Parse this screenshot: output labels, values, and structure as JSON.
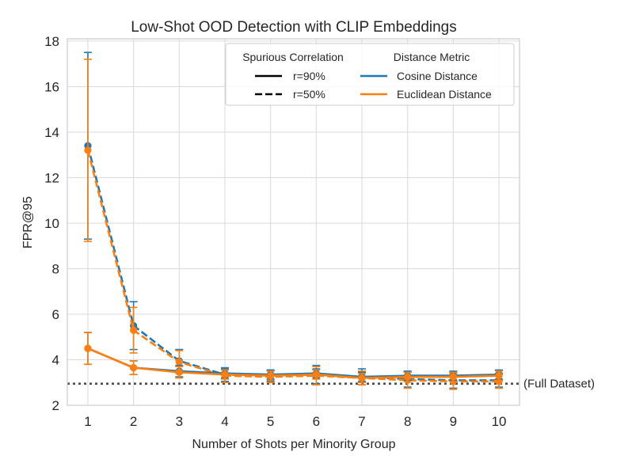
{
  "chart_data": {
    "type": "line",
    "title": "Low-Shot OOD Detection with CLIP Embeddings",
    "xlabel": "Number of Shots per Minority Group",
    "ylabel": "FPR@95",
    "x": [
      1,
      2,
      3,
      4,
      5,
      6,
      7,
      8,
      9,
      10
    ],
    "xlim": [
      0.55,
      10.45
    ],
    "ylim": [
      2,
      18.1
    ],
    "xticks": [
      "1",
      "2",
      "3",
      "4",
      "5",
      "6",
      "7",
      "8",
      "9",
      "10"
    ],
    "yticks": [
      "2",
      "4",
      "6",
      "8",
      "10",
      "12",
      "14",
      "16",
      "18"
    ],
    "grid": true,
    "colors": {
      "cosine": "#1f77b4",
      "euclidean": "#ff7f0e",
      "reference": "#4d4d4d"
    },
    "series": [
      {
        "name": "Cosine Distance, r=50%",
        "metric": "cosine",
        "style": "dashed",
        "values": [
          13.4,
          5.5,
          3.95,
          3.35,
          3.3,
          3.35,
          3.25,
          3.15,
          3.1,
          3.1
        ],
        "err": [
          4.1,
          1.05,
          0.5,
          0.3,
          0.25,
          0.4,
          0.35,
          0.35,
          0.35,
          0.3
        ]
      },
      {
        "name": "Euclidean Distance, r=50%",
        "metric": "euclidean",
        "style": "dashed",
        "values": [
          13.2,
          5.3,
          3.9,
          3.3,
          3.25,
          3.3,
          3.2,
          3.1,
          3.05,
          3.05
        ],
        "err": [
          4.0,
          1.0,
          0.5,
          0.3,
          0.25,
          0.4,
          0.3,
          0.35,
          0.35,
          0.3
        ]
      },
      {
        "name": "Cosine Distance, r=90%",
        "metric": "cosine",
        "style": "solid",
        "values": [
          4.5,
          3.65,
          3.5,
          3.4,
          3.35,
          3.4,
          3.25,
          3.3,
          3.3,
          3.35
        ],
        "err": [
          0.7,
          0.3,
          0.25,
          0.2,
          0.2,
          0.2,
          0.2,
          0.2,
          0.2,
          0.2
        ]
      },
      {
        "name": "Euclidean Distance, r=90%",
        "metric": "euclidean",
        "style": "solid",
        "values": [
          4.5,
          3.65,
          3.45,
          3.35,
          3.3,
          3.35,
          3.2,
          3.25,
          3.25,
          3.3
        ],
        "err": [
          0.7,
          0.3,
          0.25,
          0.2,
          0.2,
          0.2,
          0.2,
          0.2,
          0.2,
          0.2
        ]
      }
    ],
    "reference_line": {
      "value": 2.95,
      "label": "(Full Dataset)"
    },
    "legend": {
      "position": "top-right",
      "correlation_title": "Spurious Correlation",
      "correlation_items": [
        {
          "label": "r=90%",
          "style": "solid"
        },
        {
          "label": "r=50%",
          "style": "dashed"
        }
      ],
      "metric_title": "Distance Metric",
      "metric_items": [
        {
          "label": "Cosine Distance",
          "color": "#1f77b4"
        },
        {
          "label": "Euclidean Distance",
          "color": "#ff7f0e"
        }
      ]
    }
  }
}
